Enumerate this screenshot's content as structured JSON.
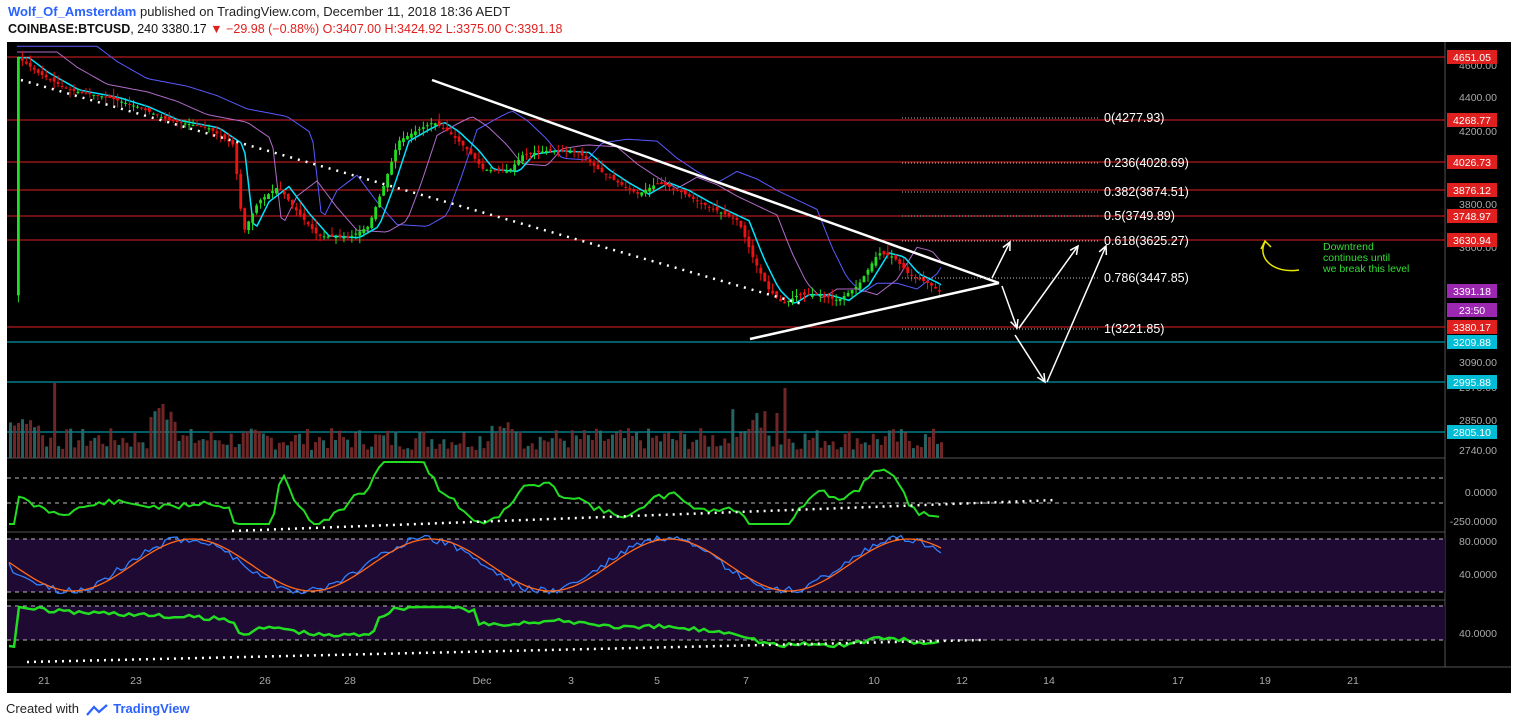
{
  "header": {
    "author": "Wolf_Of_Amsterdam",
    "published_text": "published on TradingView.com, December 11, 2018 18:36 AEDT",
    "symbol": "COINBASE:BTCUSD",
    "interval": "240",
    "last": "3380.17",
    "change": "−29.98 (−0.88%)",
    "open": "O:3407.00",
    "high": "H:3424.92",
    "low": "L:3375.00",
    "close": "C:3391.18"
  },
  "footer": {
    "created_with": "Created with",
    "brand": "TradingView"
  },
  "chart_data": {
    "type": "candlestick",
    "symbol": "COINBASE:BTCUSD",
    "interval": "240",
    "x_ticks": [
      "21",
      "23",
      "26",
      "28",
      "Dec",
      "3",
      "5",
      "7",
      "10",
      "12",
      "14",
      "17",
      "19",
      "21"
    ],
    "price_axis_ticks": [
      "4600.00",
      "4400.00",
      "4200.00",
      "3800.00",
      "3600.00",
      "3090.00",
      "2970.00",
      "2850.00",
      "2740.00"
    ],
    "price_range": [
      2740,
      4690
    ],
    "horizontal_levels": [
      {
        "label": "4651.05",
        "color": "#e0201f"
      },
      {
        "label": "4268.77",
        "color": "#e0201f"
      },
      {
        "label": "4026.73",
        "color": "#e0201f"
      },
      {
        "label": "3876.12",
        "color": "#e0201f"
      },
      {
        "label": "3748.97",
        "color": "#e0201f"
      },
      {
        "label": "3630.94",
        "color": "#e0201f"
      },
      {
        "label": "3380.17",
        "color": "#e0201f"
      },
      {
        "label": "3209.88",
        "color": "#00bcd4"
      },
      {
        "label": "2995.88",
        "color": "#00bcd4"
      },
      {
        "label": "2805.10",
        "color": "#00bcd4"
      }
    ],
    "price_markers": [
      {
        "label": "3391.18",
        "color": "#9c27b0"
      },
      {
        "label": "23:50",
        "color": "#9c27b0"
      }
    ],
    "fibonacci": [
      {
        "label": "0(4277.93)",
        "value": 4277.93
      },
      {
        "label": "0.236(4028.69)",
        "value": 4028.69
      },
      {
        "label": "0.382(3874.51)",
        "value": 3874.51
      },
      {
        "label": "0.5(3749.89)",
        "value": 3749.89
      },
      {
        "label": "0.618(3625.27)",
        "value": 3625.27
      },
      {
        "label": "0.786(3447.85)",
        "value": 3447.85
      },
      {
        "label": "1(3221.85)",
        "value": 3221.85
      }
    ],
    "annotation": "Downtrend continues until we break this level",
    "indicator_panels": [
      {
        "ticks": [
          "0.0000",
          "-250.0000"
        ]
      },
      {
        "ticks": [
          "80.0000",
          "40.0000"
        ]
      },
      {
        "ticks": [
          "40.0000"
        ]
      }
    ],
    "colors": {
      "up": "#22dd22",
      "down": "#ee1111",
      "ema_fast": "#00e5ff",
      "ema_slow": "#5a5aff",
      "ema_mid": "#b06cc8",
      "stoch_k": "#2f7fff",
      "stoch_d": "#ff6a1a",
      "indicator": "#22dd22"
    }
  }
}
